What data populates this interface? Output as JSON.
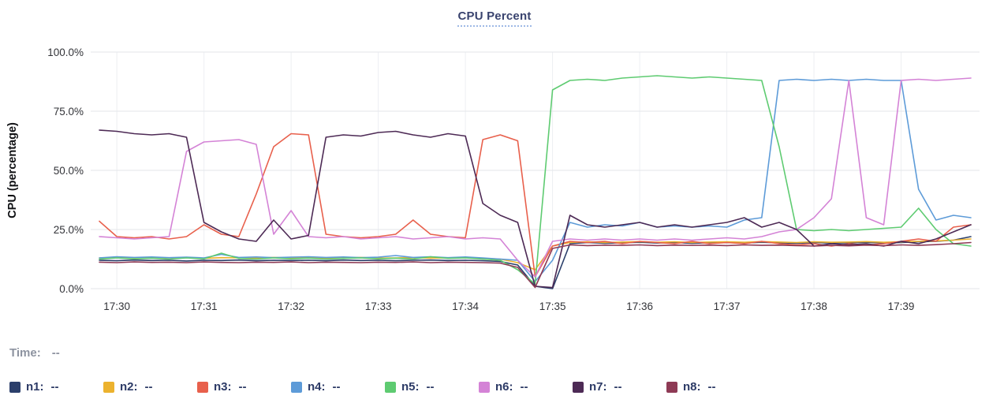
{
  "title": "CPU Percent",
  "ylabel": "CPU (percentage)",
  "time": {
    "label": "Time:",
    "value": "--"
  },
  "chart_data": {
    "type": "line",
    "title": "CPU Percent",
    "xlabel": "",
    "ylabel": "CPU (percentage)",
    "grid": true,
    "legend_position": "bottom",
    "ylim": [
      0,
      100
    ],
    "xlim_minutes": [
      -0.3,
      9.9
    ],
    "x_start_minutes": -0.2,
    "x_step_minutes": 0.2,
    "x_ticks": [
      "17:30",
      "17:31",
      "17:32",
      "17:33",
      "17:34",
      "17:35",
      "17:36",
      "17:37",
      "17:38",
      "17:39"
    ],
    "y_ticks": [
      "0.0%",
      "25.0%",
      "50.0%",
      "75.0%",
      "100.0%"
    ],
    "series": [
      {
        "name": "n1",
        "color": "#2b3f6b",
        "values": [
          12,
          11.8,
          12.1,
          11.9,
          12,
          11.7,
          12,
          11.9,
          12.1,
          11.8,
          12,
          11.9,
          12,
          11.8,
          12.1,
          11.9,
          12,
          11.8,
          12,
          12.1,
          11.9,
          12,
          11.8,
          11.5,
          10,
          1,
          0,
          19,
          19.5,
          19.2,
          19.4,
          19.6,
          19.3,
          19.5,
          19.2,
          19.4,
          19.5,
          19.3,
          19.6,
          19.4,
          19.2,
          19.5,
          19.3,
          19.4,
          19.6,
          19.3,
          19.5,
          19.8,
          20,
          20.5,
          22
        ]
      },
      {
        "name": "n2",
        "color": "#ecb22e",
        "values": [
          13,
          13.2,
          12.9,
          13.1,
          13,
          13.2,
          12.8,
          13.1,
          13,
          12.9,
          13.2,
          13,
          13.1,
          12.9,
          13,
          13.2,
          12.9,
          13,
          13.1,
          12.9,
          13,
          13.1,
          12.8,
          12.5,
          11,
          8,
          18,
          19.5,
          19.8,
          19.5,
          19.7,
          19.9,
          19.6,
          19.8,
          19.5,
          19.7,
          19.8,
          19.6,
          19.9,
          19.7,
          19.5,
          19.8,
          19.6,
          19.7,
          19.9,
          19.6,
          19.8,
          20,
          20.2,
          20.5,
          21
        ]
      },
      {
        "name": "n3",
        "color": "#e8604c",
        "values": [
          28.5,
          22,
          21.5,
          22,
          21,
          22,
          27,
          23,
          22,
          40,
          60,
          65.5,
          65,
          23,
          22,
          21.5,
          22,
          23,
          29,
          23,
          22,
          21.5,
          63,
          65,
          62.5,
          5,
          18,
          20,
          19.5,
          20,
          19,
          20,
          19.5,
          19,
          20,
          19,
          19.5,
          19,
          20,
          19,
          18.5,
          19,
          18,
          19,
          18.5,
          19,
          20,
          21,
          20,
          26,
          27
        ]
      },
      {
        "name": "n4",
        "color": "#5d9bd8",
        "values": [
          13,
          13.5,
          13.2,
          13.4,
          13.1,
          13.3,
          13,
          14.5,
          13.2,
          13.4,
          13.1,
          13.3,
          13.5,
          13.2,
          13.4,
          13.1,
          13.3,
          14,
          13.2,
          13.5,
          13.1,
          13.4,
          13,
          12.5,
          12,
          3,
          12,
          28,
          26,
          27,
          26.5,
          28,
          26,
          26.5,
          26,
          26.5,
          26,
          29,
          30,
          88,
          88.5,
          88,
          88.5,
          88,
          88.5,
          88,
          88,
          42,
          29,
          31,
          30
        ]
      },
      {
        "name": "n5",
        "color": "#5ecb71",
        "values": [
          12.5,
          13,
          12.6,
          12.9,
          12.5,
          13,
          12.6,
          15,
          12.8,
          12.5,
          13,
          12.6,
          12.9,
          12.5,
          12.8,
          13,
          12.6,
          12.9,
          12.5,
          13.5,
          12.8,
          13,
          12.5,
          12,
          8,
          2,
          84,
          88,
          88.5,
          88,
          89,
          89.5,
          90,
          89.5,
          89,
          89.5,
          89,
          88.5,
          88,
          60,
          25,
          24.5,
          25,
          24.5,
          25,
          25.5,
          26,
          34,
          25,
          19,
          18
        ]
      },
      {
        "name": "n6",
        "color": "#d483d6",
        "values": [
          22,
          21.5,
          21,
          21.5,
          22,
          58,
          62,
          62.5,
          63,
          61,
          23,
          33,
          22,
          21.5,
          22,
          21,
          21.5,
          22,
          21,
          21.5,
          22,
          21,
          21.5,
          21,
          12,
          5,
          20,
          21,
          20.5,
          21,
          20.5,
          21,
          20.5,
          21,
          20.5,
          21,
          21.5,
          21,
          22,
          24,
          25,
          30,
          38,
          88,
          30,
          27,
          88,
          88.5,
          88,
          88.5,
          89
        ]
      },
      {
        "name": "n7",
        "color": "#4d2a55",
        "values": [
          67,
          66.5,
          65.5,
          65,
          65.5,
          64,
          28,
          24,
          21,
          20,
          29,
          21,
          22.5,
          64,
          65,
          64.5,
          66,
          66.5,
          65,
          64,
          65.5,
          64.5,
          36,
          31,
          28,
          1,
          0.5,
          31,
          27,
          26,
          27,
          28,
          26,
          27,
          26,
          27,
          28,
          30,
          26,
          28,
          25,
          18,
          19,
          18.5,
          19,
          18,
          20,
          19,
          21,
          24,
          27
        ]
      },
      {
        "name": "n8",
        "color": "#8e3a55",
        "values": [
          11.2,
          11,
          11.3,
          11.1,
          11.2,
          11,
          11.3,
          11.1,
          11,
          11.2,
          11.1,
          11.3,
          11,
          11.2,
          11.1,
          11,
          11.2,
          11.1,
          11.3,
          11,
          11.2,
          11.1,
          11,
          10.8,
          9,
          0.5,
          17,
          18.5,
          18.2,
          18.4,
          18.3,
          18.5,
          18.2,
          18.4,
          18.3,
          18.4,
          18.2,
          18.5,
          18.3,
          18.4,
          18.2,
          18,
          18.3,
          18.1,
          18.4,
          18.2,
          18.5,
          18.3,
          18.6,
          19,
          19.5
        ]
      }
    ]
  },
  "legend": {
    "items": [
      {
        "label": "n1:",
        "value": "--"
      },
      {
        "label": "n2:",
        "value": "--"
      },
      {
        "label": "n3:",
        "value": "--"
      },
      {
        "label": "n4:",
        "value": "--"
      },
      {
        "label": "n5:",
        "value": "--"
      },
      {
        "label": "n6:",
        "value": "--"
      },
      {
        "label": "n7:",
        "value": "--"
      },
      {
        "label": "n8:",
        "value": "--"
      }
    ]
  }
}
